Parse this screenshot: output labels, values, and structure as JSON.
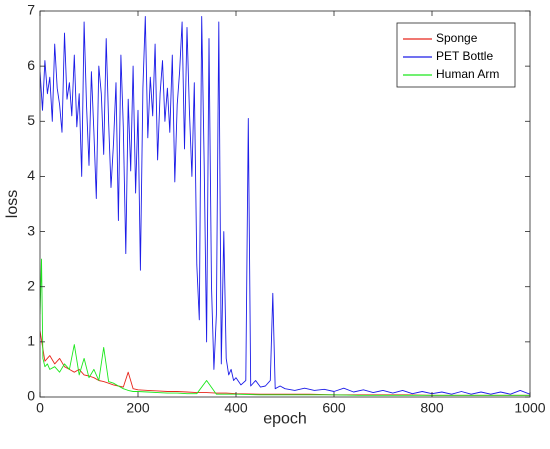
{
  "chart_data": {
    "type": "line",
    "title": "",
    "xlabel": "epoch",
    "ylabel": "loss",
    "xlim": [
      0,
      1000
    ],
    "ylim": [
      0,
      7
    ],
    "x_ticks": [
      0,
      200,
      400,
      600,
      800,
      1000
    ],
    "y_ticks": [
      0,
      1,
      2,
      3,
      4,
      5,
      6,
      7
    ],
    "grid": false,
    "legend_position": "top-right",
    "series": [
      {
        "name": "Sponge",
        "color": "#e8261c",
        "x": [
          0,
          10,
          20,
          30,
          40,
          50,
          60,
          70,
          80,
          90,
          100,
          110,
          120,
          130,
          140,
          150,
          160,
          170,
          180,
          190,
          200,
          220,
          240,
          260,
          280,
          300,
          320,
          340,
          360,
          380,
          400,
          450,
          500,
          550,
          600,
          650,
          700,
          750,
          800,
          850,
          900,
          950,
          1000
        ],
        "y": [
          1.2,
          0.65,
          0.75,
          0.6,
          0.7,
          0.55,
          0.5,
          0.45,
          0.5,
          0.4,
          0.38,
          0.35,
          0.3,
          0.28,
          0.25,
          0.22,
          0.2,
          0.18,
          0.45,
          0.15,
          0.13,
          0.12,
          0.11,
          0.1,
          0.1,
          0.09,
          0.08,
          0.08,
          0.07,
          0.07,
          0.06,
          0.05,
          0.05,
          0.05,
          0.04,
          0.04,
          0.04,
          0.04,
          0.03,
          0.03,
          0.03,
          0.03,
          0.03
        ]
      },
      {
        "name": "PET Bottle",
        "color": "#1c1ce8",
        "x": [
          0,
          5,
          10,
          15,
          20,
          25,
          30,
          35,
          40,
          45,
          50,
          55,
          60,
          65,
          70,
          75,
          80,
          85,
          90,
          95,
          100,
          105,
          110,
          115,
          120,
          125,
          130,
          135,
          140,
          145,
          150,
          155,
          160,
          165,
          170,
          175,
          180,
          185,
          190,
          195,
          200,
          205,
          210,
          215,
          220,
          225,
          230,
          235,
          240,
          245,
          250,
          255,
          260,
          265,
          270,
          275,
          280,
          285,
          290,
          295,
          300,
          305,
          310,
          315,
          320,
          325,
          330,
          335,
          340,
          345,
          350,
          355,
          360,
          365,
          370,
          375,
          380,
          385,
          390,
          395,
          400,
          410,
          420,
          425,
          430,
          440,
          450,
          460,
          470,
          475,
          480,
          490,
          500,
          520,
          540,
          560,
          580,
          600,
          620,
          640,
          660,
          680,
          700,
          720,
          740,
          760,
          780,
          800,
          820,
          840,
          860,
          880,
          900,
          920,
          940,
          960,
          980,
          1000
        ],
        "y": [
          5.9,
          5.2,
          6.1,
          5.5,
          5.8,
          5.0,
          6.4,
          5.6,
          5.3,
          4.8,
          6.6,
          5.4,
          5.7,
          5.1,
          6.2,
          4.9,
          5.5,
          4.0,
          6.8,
          5.3,
          4.2,
          5.9,
          4.8,
          3.6,
          6.0,
          5.5,
          4.4,
          6.5,
          5.0,
          3.8,
          4.6,
          5.7,
          3.2,
          6.2,
          4.9,
          2.6,
          5.4,
          4.1,
          6.0,
          3.7,
          5.2,
          2.3,
          5.6,
          6.9,
          4.7,
          5.8,
          5.1,
          6.4,
          4.3,
          5.5,
          6.1,
          5.0,
          5.6,
          4.8,
          6.2,
          3.9,
          5.3,
          5.9,
          6.8,
          4.5,
          6.7,
          5.2,
          4.0,
          5.7,
          2.4,
          1.4,
          6.9,
          4.2,
          1.0,
          6.5,
          2.0,
          0.5,
          1.5,
          6.8,
          0.6,
          3.0,
          0.7,
          0.4,
          0.5,
          0.3,
          0.35,
          0.22,
          0.3,
          5.05,
          0.2,
          0.3,
          0.18,
          0.2,
          0.3,
          1.88,
          0.15,
          0.2,
          0.15,
          0.12,
          0.16,
          0.12,
          0.14,
          0.1,
          0.16,
          0.09,
          0.13,
          0.08,
          0.12,
          0.07,
          0.12,
          0.06,
          0.1,
          0.06,
          0.09,
          0.05,
          0.1,
          0.05,
          0.09,
          0.05,
          0.09,
          0.05,
          0.12,
          0.05
        ]
      },
      {
        "name": "Human Arm",
        "color": "#1ce81c",
        "x": [
          0,
          3,
          6,
          10,
          15,
          20,
          30,
          40,
          50,
          60,
          70,
          80,
          90,
          100,
          110,
          120,
          130,
          140,
          150,
          160,
          170,
          180,
          190,
          200,
          220,
          240,
          260,
          280,
          300,
          320,
          340,
          360,
          380,
          400,
          450,
          500,
          550,
          600,
          650,
          700,
          750,
          800,
          850,
          900,
          950,
          1000
        ],
        "y": [
          1.5,
          2.5,
          0.7,
          0.55,
          0.6,
          0.5,
          0.55,
          0.45,
          0.6,
          0.5,
          0.95,
          0.4,
          0.7,
          0.35,
          0.5,
          0.3,
          0.9,
          0.28,
          0.25,
          0.2,
          0.15,
          0.12,
          0.1,
          0.1,
          0.09,
          0.08,
          0.07,
          0.07,
          0.06,
          0.06,
          0.3,
          0.05,
          0.05,
          0.05,
          0.04,
          0.04,
          0.04,
          0.04,
          0.03,
          0.03,
          0.03,
          0.03,
          0.03,
          0.03,
          0.03,
          0.03
        ]
      }
    ]
  }
}
